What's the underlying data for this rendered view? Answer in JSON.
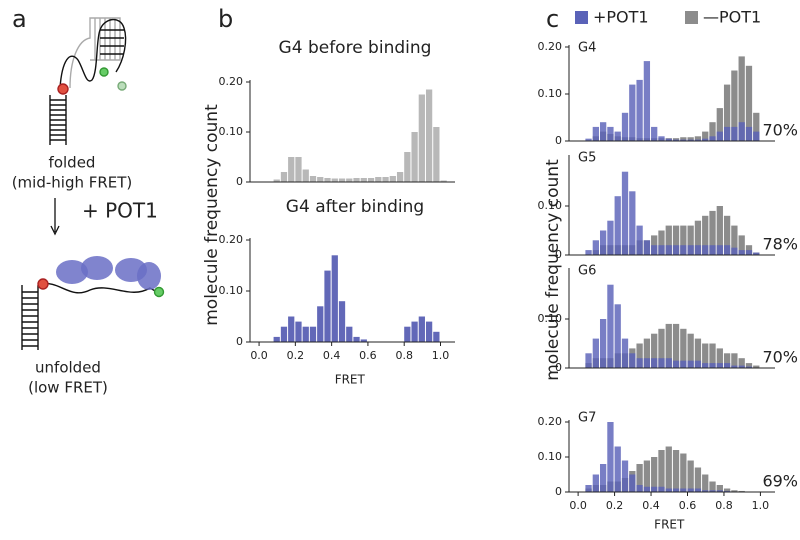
{
  "panel_labels": [
    "a",
    "b",
    "c"
  ],
  "diagram": {
    "folded": "folded",
    "folded_note": "(mid-high FRET)",
    "treatment": "+ POT1",
    "unfolded": "unfolded",
    "unfolded_note": "(low FRET)"
  },
  "chart_data": [
    {
      "type": "histogram",
      "title": "G4 before binding",
      "ylabel": "molecule frequency count",
      "bins": [
        0,
        0.04,
        0.08,
        0.12,
        0.16,
        0.2,
        0.24,
        0.28,
        0.32,
        0.36,
        0.4,
        0.44,
        0.48,
        0.52,
        0.56,
        0.6,
        0.64,
        0.68,
        0.72,
        0.76,
        0.8,
        0.84,
        0.88,
        0.92,
        0.96,
        1,
        1.04
      ],
      "values": [
        0,
        0,
        0.005,
        0.02,
        0.05,
        0.05,
        0.025,
        0.012,
        0.01,
        0.008,
        0.007,
        0.007,
        0.007,
        0.008,
        0.008,
        0.008,
        0.01,
        0.01,
        0.012,
        0.02,
        0.06,
        0.1,
        0.175,
        0.185,
        0.11,
        0.003
      ],
      "color": "#b8b8b8",
      "xlim": [
        -0.05,
        1.08
      ],
      "ylim": [
        0,
        0.2
      ],
      "yticks": [
        0,
        {
          "value": 0.1,
          "label": "0.10"
        },
        {
          "value": 0.2,
          "label": "0.20"
        }
      ]
    },
    {
      "type": "histogram",
      "title": "G4 after binding",
      "xlabel": "FRET",
      "bins": [
        0,
        0.04,
        0.08,
        0.12,
        0.16,
        0.2,
        0.24,
        0.28,
        0.32,
        0.36,
        0.4,
        0.44,
        0.48,
        0.52,
        0.56,
        0.6,
        0.64,
        0.68,
        0.72,
        0.76,
        0.8,
        0.84,
        0.88,
        0.92,
        0.96,
        1,
        1.04
      ],
      "values": [
        0,
        0,
        0.01,
        0.03,
        0.05,
        0.04,
        0.03,
        0.03,
        0.07,
        0.14,
        0.17,
        0.08,
        0.03,
        0.01,
        0.005,
        0,
        0,
        0,
        0,
        0,
        0.03,
        0.04,
        0.05,
        0.04,
        0.02,
        0
      ],
      "color": "#6268b8",
      "xlim": [
        -0.05,
        1.08
      ],
      "ylim": [
        0,
        0.2
      ],
      "yticks": [
        0,
        {
          "value": 0.1,
          "label": "0.10"
        },
        {
          "value": 0.2,
          "label": "0.20"
        }
      ],
      "xticks": [
        {
          "value": 0,
          "label": "0.0"
        },
        0.2,
        0.4,
        0.6,
        0.8,
        {
          "value": 1,
          "label": "1.0"
        }
      ]
    },
    {
      "type": "histogram",
      "title": "G4",
      "annotation": "70%",
      "ylabel": "molecule frequency count",
      "bins": [
        0,
        0.04,
        0.08,
        0.12,
        0.16,
        0.2,
        0.24,
        0.28,
        0.32,
        0.36,
        0.4,
        0.44,
        0.48,
        0.52,
        0.56,
        0.6,
        0.64,
        0.68,
        0.72,
        0.76,
        0.8,
        0.84,
        0.88,
        0.92,
        0.96,
        1,
        1.04
      ],
      "series": [
        {
          "name": "—POT1",
          "color": "#8c8c8c",
          "values": [
            0,
            0,
            0.01,
            0.02,
            0.015,
            0.01,
            0.008,
            0.008,
            0.006,
            0.006,
            0.006,
            0.006,
            0.006,
            0.006,
            0.008,
            0.008,
            0.01,
            0.02,
            0.04,
            0.07,
            0.12,
            0.15,
            0.18,
            0.16,
            0.06,
            0
          ]
        },
        {
          "name": "+POT1",
          "color": "#5a62b8",
          "values": [
            0,
            0.005,
            0.03,
            0.04,
            0.03,
            0.02,
            0.06,
            0.12,
            0.13,
            0.17,
            0.03,
            0.01,
            0.005,
            0.003,
            0.003,
            0.003,
            0.003,
            0.005,
            0.01,
            0.02,
            0.03,
            0.03,
            0.04,
            0.03,
            0.02,
            0
          ]
        }
      ],
      "xlim": [
        -0.05,
        1.08
      ],
      "ylim": [
        0,
        0.2
      ],
      "yticks": [
        0,
        {
          "value": 0.1,
          "label": "0.10"
        },
        {
          "value": 0.2,
          "label": "0.20"
        }
      ]
    },
    {
      "type": "histogram",
      "title": "G5",
      "annotation": "78%",
      "bins": [
        0,
        0.04,
        0.08,
        0.12,
        0.16,
        0.2,
        0.24,
        0.28,
        0.32,
        0.36,
        0.4,
        0.44,
        0.48,
        0.52,
        0.56,
        0.6,
        0.64,
        0.68,
        0.72,
        0.76,
        0.8,
        0.84,
        0.88,
        0.92,
        0.96,
        1,
        1.04
      ],
      "series": [
        {
          "color": "#8c8c8c",
          "values": [
            0,
            0,
            0.01,
            0.02,
            0.02,
            0.02,
            0.02,
            0.02,
            0.03,
            0.03,
            0.04,
            0.05,
            0.06,
            0.06,
            0.06,
            0.06,
            0.07,
            0.08,
            0.09,
            0.1,
            0.08,
            0.06,
            0.04,
            0.02,
            0.005,
            0
          ]
        },
        {
          "color": "#5a62b8",
          "values": [
            0,
            0.01,
            0.03,
            0.05,
            0.07,
            0.12,
            0.17,
            0.13,
            0.06,
            0.03,
            0.02,
            0.02,
            0.02,
            0.02,
            0.02,
            0.02,
            0.02,
            0.02,
            0.02,
            0.02,
            0.02,
            0.015,
            0.01,
            0.01,
            0.005,
            0
          ]
        }
      ],
      "xlim": [
        -0.05,
        1.08
      ],
      "ylim": [
        0,
        0.2
      ],
      "yticks": [
        0,
        {
          "value": 0.1,
          "label": "0.10"
        }
      ]
    },
    {
      "type": "histogram",
      "title": "G6",
      "annotation": "70%",
      "bins": [
        0,
        0.04,
        0.08,
        0.12,
        0.16,
        0.2,
        0.24,
        0.28,
        0.32,
        0.36,
        0.4,
        0.44,
        0.48,
        0.52,
        0.56,
        0.6,
        0.64,
        0.68,
        0.72,
        0.76,
        0.8,
        0.84,
        0.88,
        0.92,
        0.96,
        1,
        1.04
      ],
      "series": [
        {
          "color": "#8c8c8c",
          "values": [
            0,
            0.01,
            0.02,
            0.02,
            0.02,
            0.03,
            0.03,
            0.04,
            0.05,
            0.06,
            0.07,
            0.08,
            0.09,
            0.09,
            0.08,
            0.07,
            0.06,
            0.05,
            0.05,
            0.04,
            0.03,
            0.03,
            0.02,
            0.01,
            0.005,
            0
          ]
        },
        {
          "color": "#5a62b8",
          "values": [
            0,
            0.03,
            0.06,
            0.1,
            0.17,
            0.13,
            0.06,
            0.03,
            0.02,
            0.02,
            0.02,
            0.02,
            0.02,
            0.015,
            0.015,
            0.015,
            0.015,
            0.01,
            0.01,
            0.01,
            0.01,
            0.005,
            0.005,
            0.003,
            0,
            0
          ]
        }
      ],
      "xlim": [
        -0.05,
        1.08
      ],
      "ylim": [
        0,
        0.2
      ],
      "yticks": [
        0,
        {
          "value": 0.1,
          "label": "0.10"
        }
      ]
    },
    {
      "type": "histogram",
      "title": "G7",
      "annotation": "69%",
      "xlabel": "FRET",
      "bins": [
        0,
        0.04,
        0.08,
        0.12,
        0.16,
        0.2,
        0.24,
        0.28,
        0.32,
        0.36,
        0.4,
        0.44,
        0.48,
        0.52,
        0.56,
        0.6,
        0.64,
        0.68,
        0.72,
        0.76,
        0.8,
        0.84,
        0.88,
        0.92,
        0.96,
        1,
        1.04
      ],
      "series": [
        {
          "color": "#8c8c8c",
          "values": [
            0,
            0.01,
            0.02,
            0.02,
            0.03,
            0.03,
            0.04,
            0.06,
            0.08,
            0.09,
            0.1,
            0.12,
            0.13,
            0.12,
            0.11,
            0.09,
            0.07,
            0.05,
            0.03,
            0.02,
            0.01,
            0.005,
            0.003,
            0,
            0,
            0
          ]
        },
        {
          "color": "#5a62b8",
          "values": [
            0,
            0.02,
            0.05,
            0.08,
            0.2,
            0.13,
            0.09,
            0.05,
            0.02,
            0.015,
            0.015,
            0.015,
            0.01,
            0.01,
            0.01,
            0.01,
            0.01,
            0.005,
            0.005,
            0.005,
            0.003,
            0,
            0,
            0,
            0,
            0
          ]
        }
      ],
      "xlim": [
        -0.05,
        1.08
      ],
      "ylim": [
        0,
        0.2
      ],
      "yticks": [
        0,
        {
          "value": 0.1,
          "label": "0.10"
        },
        {
          "value": 0.2,
          "label": "0.20"
        }
      ],
      "xticks": [
        {
          "value": 0,
          "label": "0.0"
        },
        0.2,
        0.4,
        0.6,
        0.8,
        {
          "value": 1,
          "label": "1.0"
        }
      ]
    }
  ]
}
